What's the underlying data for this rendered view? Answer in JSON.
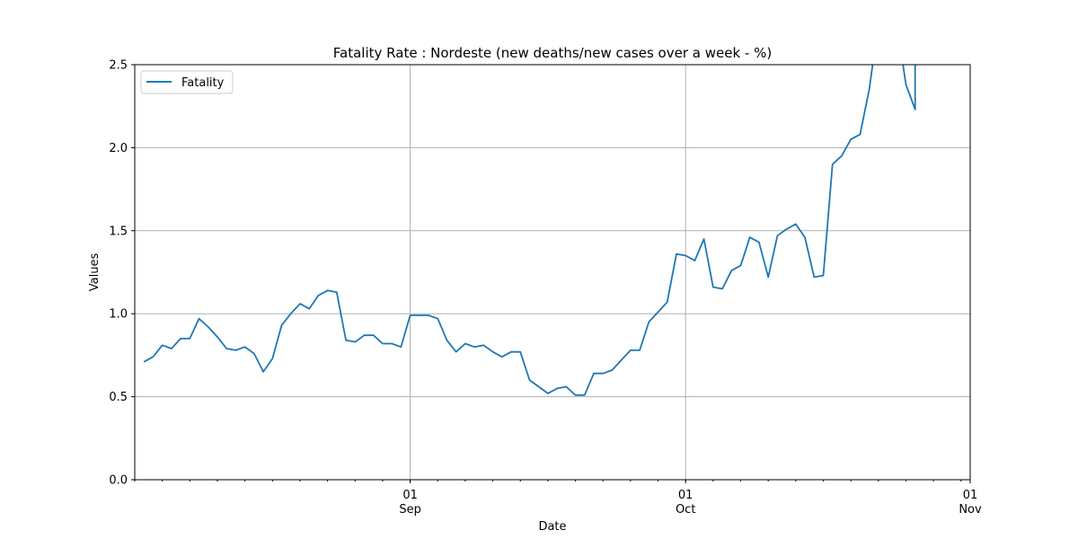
{
  "chart_data": {
    "type": "line",
    "title": "Fatality Rate : Nordeste  (new deaths/new cases over a week - %)",
    "xlabel": "Date",
    "ylabel": "Values",
    "xlim": [
      "2020-08-02",
      "2020-11-01"
    ],
    "ylim": [
      0,
      2.5
    ],
    "grid": true,
    "legend_position": "top-left",
    "line_color": "#1f77b4",
    "y_ticks": [
      "0.0",
      "0.5",
      "1.0",
      "1.5",
      "2.0",
      "2.5"
    ],
    "x_major_ticks": [
      {
        "date": "2020-09-01",
        "day": "01",
        "month": "Sep"
      },
      {
        "date": "2020-10-01",
        "day": "01",
        "month": "Oct"
      },
      {
        "date": "2020-11-01",
        "day": "01",
        "month": "Nov"
      }
    ],
    "series": [
      {
        "name": "Fatality",
        "x": [
          "2020-08-03",
          "2020-08-04",
          "2020-08-05",
          "2020-08-06",
          "2020-08-07",
          "2020-08-08",
          "2020-08-09",
          "2020-08-10",
          "2020-08-11",
          "2020-08-12",
          "2020-08-13",
          "2020-08-14",
          "2020-08-15",
          "2020-08-16",
          "2020-08-17",
          "2020-08-18",
          "2020-08-19",
          "2020-08-20",
          "2020-08-21",
          "2020-08-22",
          "2020-08-23",
          "2020-08-24",
          "2020-08-25",
          "2020-08-26",
          "2020-08-27",
          "2020-08-28",
          "2020-08-29",
          "2020-08-30",
          "2020-08-31",
          "2020-09-01",
          "2020-09-02",
          "2020-09-03",
          "2020-09-04",
          "2020-09-05",
          "2020-09-06",
          "2020-09-07",
          "2020-09-08",
          "2020-09-09",
          "2020-09-10",
          "2020-09-11",
          "2020-09-12",
          "2020-09-13",
          "2020-09-14",
          "2020-09-15",
          "2020-09-16",
          "2020-09-17",
          "2020-09-18",
          "2020-09-19",
          "2020-09-20",
          "2020-09-21",
          "2020-09-22",
          "2020-09-23",
          "2020-09-24",
          "2020-09-25",
          "2020-09-26",
          "2020-09-27",
          "2020-09-28",
          "2020-09-29",
          "2020-09-30",
          "2020-10-01",
          "2020-10-02",
          "2020-10-03",
          "2020-10-04",
          "2020-10-05",
          "2020-10-06",
          "2020-10-07",
          "2020-10-08",
          "2020-10-09",
          "2020-10-10",
          "2020-10-11",
          "2020-10-12",
          "2020-10-13",
          "2020-10-14",
          "2020-10-15",
          "2020-10-16",
          "2020-10-17",
          "2020-10-18",
          "2020-10-19",
          "2020-10-20",
          "2020-10-21",
          "2020-10-22",
          "2020-10-23",
          "2020-10-24",
          "2020-10-25",
          "2020-10-26",
          "2020-10-26"
        ],
        "values": [
          0.71,
          0.74,
          0.81,
          0.79,
          0.85,
          0.85,
          0.97,
          0.92,
          0.86,
          0.79,
          0.78,
          0.8,
          0.76,
          0.65,
          0.73,
          0.93,
          1.0,
          1.06,
          1.03,
          1.11,
          1.14,
          1.13,
          0.84,
          0.83,
          0.87,
          0.87,
          0.82,
          0.82,
          0.8,
          0.99,
          0.99,
          0.99,
          0.97,
          0.84,
          0.77,
          0.82,
          0.8,
          0.81,
          0.77,
          0.74,
          0.77,
          0.77,
          0.6,
          0.56,
          0.52,
          0.55,
          0.56,
          0.51,
          0.51,
          0.64,
          0.64,
          0.66,
          0.72,
          0.78,
          0.78,
          0.95,
          1.01,
          1.07,
          1.36,
          1.35,
          1.32,
          1.45,
          1.16,
          1.15,
          1.26,
          1.29,
          1.46,
          1.43,
          1.22,
          1.47,
          1.51,
          1.54,
          1.46,
          1.22,
          1.23,
          1.9,
          1.95,
          2.05,
          2.08,
          2.35,
          2.75,
          2.72,
          2.75,
          2.38,
          2.23,
          2.75
        ]
      }
    ]
  }
}
